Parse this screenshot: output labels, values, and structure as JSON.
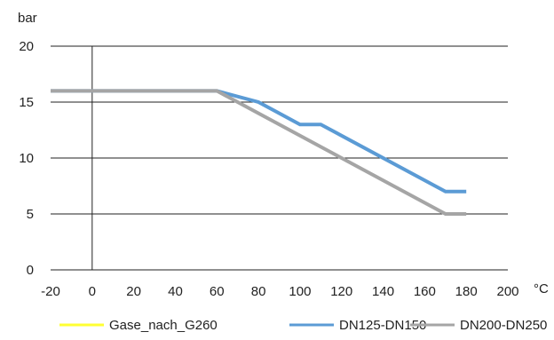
{
  "chart_data": {
    "type": "line",
    "ylabel": "bar",
    "xlabel": "°C",
    "xlim": [
      -20,
      200
    ],
    "ylim": [
      0,
      20
    ],
    "x_ticks": [
      "-20",
      "0",
      "20",
      "40",
      "60",
      "80",
      "100",
      "120",
      "140",
      "160",
      "180",
      "200"
    ],
    "y_ticks": [
      "0",
      "5",
      "10",
      "15",
      "20"
    ],
    "grid": "horizontal",
    "legend_position": "bottom",
    "series": [
      {
        "name": "Gase_nach_G260",
        "color": "#ffff33",
        "x": [],
        "y": []
      },
      {
        "name": "DN125-DN150",
        "color": "#5b9bd5",
        "x": [
          -20,
          60,
          80,
          100,
          110,
          170,
          180
        ],
        "y": [
          16,
          16,
          15,
          13,
          13,
          7,
          7
        ]
      },
      {
        "name": "DN200-DN250",
        "color": "#a5a5a5",
        "x": [
          -20,
          60,
          170,
          180
        ],
        "y": [
          16,
          16,
          5,
          5
        ]
      }
    ]
  }
}
